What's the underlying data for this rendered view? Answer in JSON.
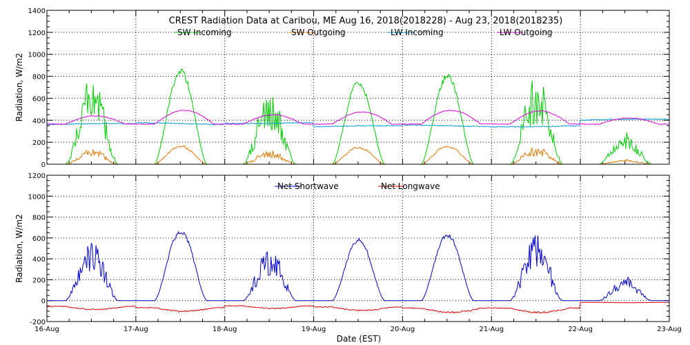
{
  "chart_data": [
    {
      "type": "line",
      "title": "CREST Radiation Data at Caribou, ME   Aug 16, 2018(2018228) - Aug 23, 2018(2018235)",
      "xlabel": "",
      "ylabel": "Radiation, W/m2",
      "xlim": [
        0,
        7
      ],
      "ylim": [
        0,
        1400
      ],
      "y_ticks": [
        "0",
        "200",
        "400",
        "600",
        "800",
        "1000",
        "1200",
        "1400"
      ],
      "x_ticks": [
        "16-Aug",
        "17-Aug",
        "18-Aug",
        "19-Aug",
        "20-Aug",
        "21-Aug",
        "22-Aug",
        "23-Aug"
      ],
      "grid": true,
      "legend_position": "top",
      "daily_peaks": {
        "days": [
          "16-Aug",
          "17-Aug",
          "18-Aug",
          "19-Aug",
          "20-Aug",
          "21-Aug",
          "22-Aug"
        ],
        "sw_incoming": [
          800,
          880,
          650,
          770,
          830,
          810,
          300
        ],
        "sw_outgoing": [
          150,
          180,
          130,
          165,
          175,
          175,
          50
        ],
        "lw_incoming_mean": [
          360,
          370,
          380,
          340,
          350,
          350,
          400
        ],
        "lw_outgoing_max": [
          440,
          490,
          450,
          475,
          490,
          485,
          420
        ]
      },
      "series": [
        {
          "name": "SW Incoming",
          "color": "#00cc00"
        },
        {
          "name": "SW Outgoing",
          "color": "#e07800"
        },
        {
          "name": "LW Incoming",
          "color": "#0099dd"
        },
        {
          "name": "LW Outgoing",
          "color": "#dd00dd"
        }
      ]
    },
    {
      "type": "line",
      "title": "",
      "xlabel": "Date (EST)",
      "ylabel": "Radiation, W/m2",
      "xlim": [
        0,
        7
      ],
      "ylim": [
        -200,
        1200
      ],
      "y_ticks": [
        "-200",
        "0",
        "200",
        "400",
        "600",
        "800",
        "1000",
        "1200"
      ],
      "x_ticks": [
        "16-Aug",
        "17-Aug",
        "18-Aug",
        "19-Aug",
        "20-Aug",
        "21-Aug",
        "22-Aug",
        "23-Aug"
      ],
      "grid": true,
      "legend_position": "top",
      "daily_peaks": {
        "days": [
          "16-Aug",
          "17-Aug",
          "18-Aug",
          "19-Aug",
          "20-Aug",
          "21-Aug",
          "22-Aug"
        ],
        "net_shortwave": [
          620,
          690,
          520,
          600,
          650,
          640,
          230
        ],
        "net_longwave_min": [
          -90,
          -110,
          -80,
          -100,
          -120,
          -120,
          -20
        ]
      },
      "series": [
        {
          "name": "Net Shortwave",
          "color": "#0000cc"
        },
        {
          "name": "Net Longwave",
          "color": "#dd0000"
        }
      ]
    }
  ]
}
